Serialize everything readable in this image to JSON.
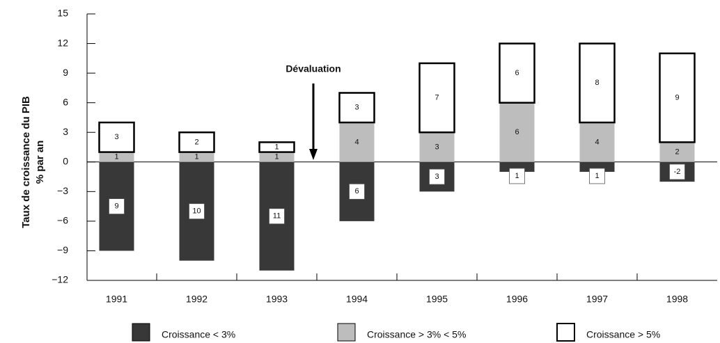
{
  "chart_data": {
    "type": "bar",
    "stacked": true,
    "ylabel": [
      "Taux de croissance du PIB",
      "% par an"
    ],
    "annotation": "Dévaluation",
    "categories": [
      "1991",
      "1992",
      "1993",
      "1994",
      "1995",
      "1996",
      "1997",
      "1998"
    ],
    "series": [
      {
        "name": "Croissance < 3%",
        "color": "#383838",
        "values": [
          -9,
          -10,
          -11,
          -6,
          -3,
          -1,
          -1,
          -2
        ],
        "value_labels": [
          "9",
          "10",
          "11",
          "6",
          "3",
          "1",
          "1",
          "-2"
        ]
      },
      {
        "name": "Croissance > 3% < 5%",
        "color": "#bdbdbd",
        "values": [
          1,
          1,
          1,
          4,
          3,
          6,
          4,
          2
        ]
      },
      {
        "name": "Croissance > 5%",
        "color": "#ffffff",
        "values": [
          3,
          2,
          1,
          3,
          7,
          6,
          8,
          9
        ]
      }
    ],
    "ylim": [
      -12,
      15
    ],
    "yticks": [
      {
        "value": -12,
        "label": "−12"
      },
      {
        "value": -9,
        "label": "−9"
      },
      {
        "value": -6,
        "label": "−6"
      },
      {
        "value": -3,
        "label": "−3"
      },
      0,
      3,
      6,
      9,
      12,
      15
    ]
  }
}
